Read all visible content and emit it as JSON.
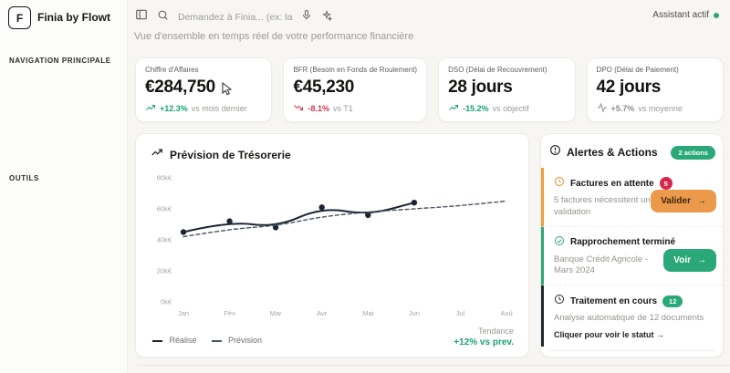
{
  "header": {
    "logo_letter": "F",
    "app_title": "Finia by Flowt",
    "search_placeholder": "Demandez à Finia... (ex: la",
    "assistant_status": "Assistant actif",
    "subtitle": "Vue d'ensemble en temps réel de votre performance financière"
  },
  "sidebar": {
    "section_labels": [
      "NAVIGATION PRINCIPALE",
      "OUTILS"
    ]
  },
  "kpis": [
    {
      "title": "Chiffre d'Affaires",
      "value": "€284,750",
      "delta": "+12.3%",
      "delta_suffix": "vs mois dernier",
      "trend": "up"
    },
    {
      "title": "BFR (Besoin en Fonds de Roulement)",
      "value": "€45,230",
      "delta": "-8.1%",
      "delta_suffix": "vs T1",
      "trend": "down"
    },
    {
      "title": "DSO (Délai de Recouvrement)",
      "value": "28 jours",
      "delta": "-15.2%",
      "delta_suffix": "vs objectif",
      "trend": "up"
    },
    {
      "title": "DPO (Délai de Paiement)",
      "value": "42 jours",
      "delta": "+5.7%",
      "delta_suffix": "vs moyenne",
      "trend": "flat"
    }
  ],
  "chart_data": {
    "type": "line",
    "title": "Prévision de Trésorerie",
    "x": [
      "Jan",
      "Fév",
      "Mar",
      "Avr",
      "Mai",
      "Jun",
      "Jul",
      "Aoû"
    ],
    "y_ticks": [
      "0k€",
      "20k€",
      "40k€",
      "60k€",
      "80k€"
    ],
    "ylim": [
      0,
      80000
    ],
    "grid": false,
    "legend_position": "bottom-left",
    "series": [
      {
        "name": "Réalisé",
        "style": "solid",
        "color": "#1b2433",
        "values": [
          45000,
          52000,
          48000,
          61000,
          56000,
          64000,
          null,
          null
        ]
      },
      {
        "name": "Prévision",
        "style": "dashed",
        "color": "#4a5560",
        "values": [
          42000,
          47000,
          49000,
          55000,
          58000,
          60000,
          62000,
          65000
        ]
      }
    ],
    "footer_label": "Tendance",
    "footer_value": "+12% vs prev."
  },
  "alerts": {
    "title": "Alertes & Actions",
    "badge": "2 actions",
    "items": [
      {
        "title": "Factures en attente",
        "count": "5",
        "description": "5 factures nécessitent une validation",
        "button": "Valider"
      },
      {
        "title": "Rapprochement terminé",
        "description": "Banque Crédit Agricole - Mars 2024",
        "button": "Voir"
      },
      {
        "title": "Traitement en cours",
        "count": "12",
        "description": "Analyse automatique de 12 documents",
        "link": "Cliquer pour voir le statut →"
      }
    ]
  },
  "ui": {
    "arrow": "→"
  },
  "colors": {
    "green": "#2aa87a",
    "red": "#d5294b",
    "orange": "#eb9a4b",
    "navy": "#1b2433"
  }
}
